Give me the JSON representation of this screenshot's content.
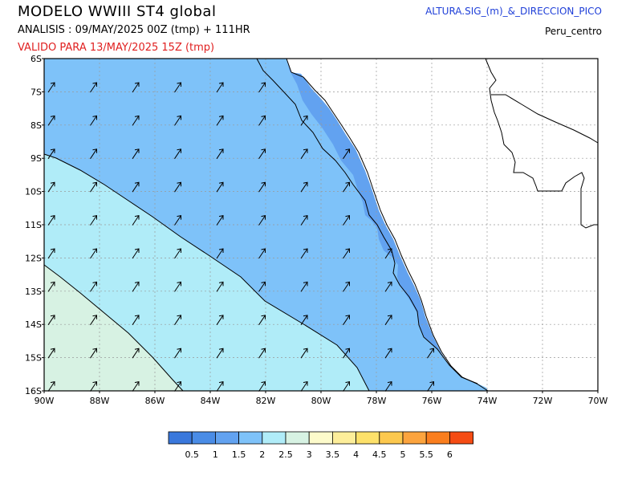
{
  "header": {
    "title": "MODELO  WWIII  ST4  global",
    "analysis": "ANALISIS : 09/MAY/2025 00Z  (tmp) + 111HR",
    "valid": "VALIDO PARA   13/MAY/2025 15Z  (tmp)",
    "variable": "ALTURA.SIG_(m)_&_DIRECCION_PICO",
    "region": "Peru_centro"
  },
  "axes": {
    "lat_labels": [
      "6S",
      "7S",
      "8S",
      "9S",
      "10S",
      "11S",
      "12S",
      "13S",
      "14S",
      "15S",
      "16S"
    ],
    "lon_labels": [
      "90W",
      "88W",
      "86W",
      "84W",
      "82W",
      "80W",
      "78W",
      "76W",
      "74W",
      "72W",
      "70W"
    ]
  },
  "colorbar": {
    "colors": [
      "#3a78dc",
      "#4a8ce6",
      "#62a2f0",
      "#7ec2f9",
      "#b0ecf8",
      "#d7f2e3",
      "#fdfbcb",
      "#fdee9a",
      "#fde16a",
      "#fcc84e",
      "#fca43e",
      "#fa7e1e",
      "#f54c14"
    ],
    "labels": [
      "0.5",
      "1",
      "1.5",
      "2",
      "2.5",
      "3",
      "3.5",
      "4",
      "4.5",
      "5",
      "5.5",
      "6"
    ]
  },
  "map_colors": {
    "band_1_5_2": "#7ec2f9",
    "band_2_2_5": "#b0ecf8",
    "band_2_5_3": "#d7f2e3",
    "coast_band": "#62a2f0",
    "land": "#ffffff"
  },
  "wave_direction": "north-east"
}
